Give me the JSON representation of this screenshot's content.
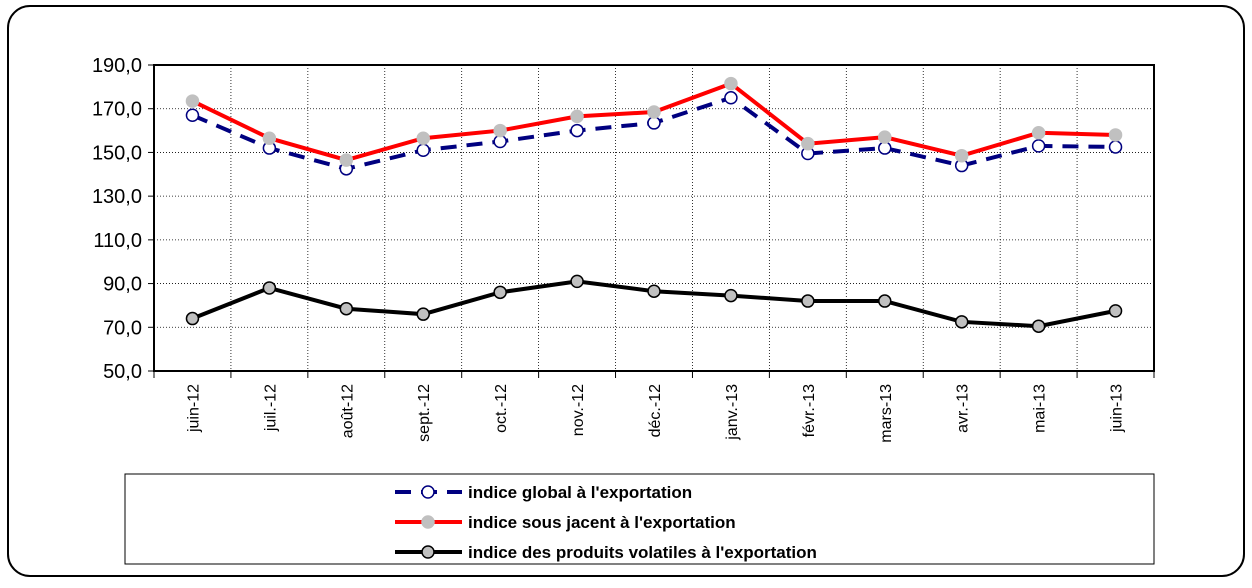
{
  "chart_data": {
    "type": "line",
    "categories": [
      "juin-12",
      "juil.-12",
      "août-12",
      "sept.-12",
      "oct.-12",
      "nov.-12",
      "déc.-12",
      "janv.-13",
      "févr.-13",
      "mars-13",
      "avr.-13",
      "mai-13",
      "juin-13"
    ],
    "series": [
      {
        "name": "indice global à l'exportation",
        "color": "#000080",
        "marker_fill": "#ffffff",
        "dashed": true,
        "values": [
          167,
          152,
          142.5,
          151,
          155,
          160,
          163.5,
          175,
          149.5,
          152,
          144,
          153,
          152.5
        ]
      },
      {
        "name": "indice sous jacent à l'exportation",
        "color": "#ff0000",
        "marker_fill": "#c0c0c0",
        "marker_stroke": "#c0c0c0",
        "dashed": false,
        "values": [
          173.5,
          156.5,
          146.5,
          156.5,
          160,
          166.5,
          168.5,
          181.5,
          154,
          157,
          148.5,
          159,
          158
        ]
      },
      {
        "name": "indice des produits volatiles à l'exportation",
        "color": "#000000",
        "marker_fill": "#c0c0c0",
        "dashed": false,
        "values": [
          74,
          88,
          78.5,
          76,
          86,
          91,
          86.5,
          84.5,
          82,
          82,
          72.5,
          70.5,
          77.5
        ]
      }
    ],
    "ylim": [
      50,
      190
    ],
    "yticks": [
      {
        "value": 50,
        "label": "50,0"
      },
      {
        "value": 70,
        "label": "70,0"
      },
      {
        "value": 90,
        "label": "90,0"
      },
      {
        "value": 110,
        "label": "110,0"
      },
      {
        "value": 130,
        "label": "130,0"
      },
      {
        "value": 150,
        "label": "150,0"
      },
      {
        "value": 170,
        "label": "170,0"
      },
      {
        "value": 190,
        "label": "190,0"
      }
    ],
    "grid": true
  }
}
